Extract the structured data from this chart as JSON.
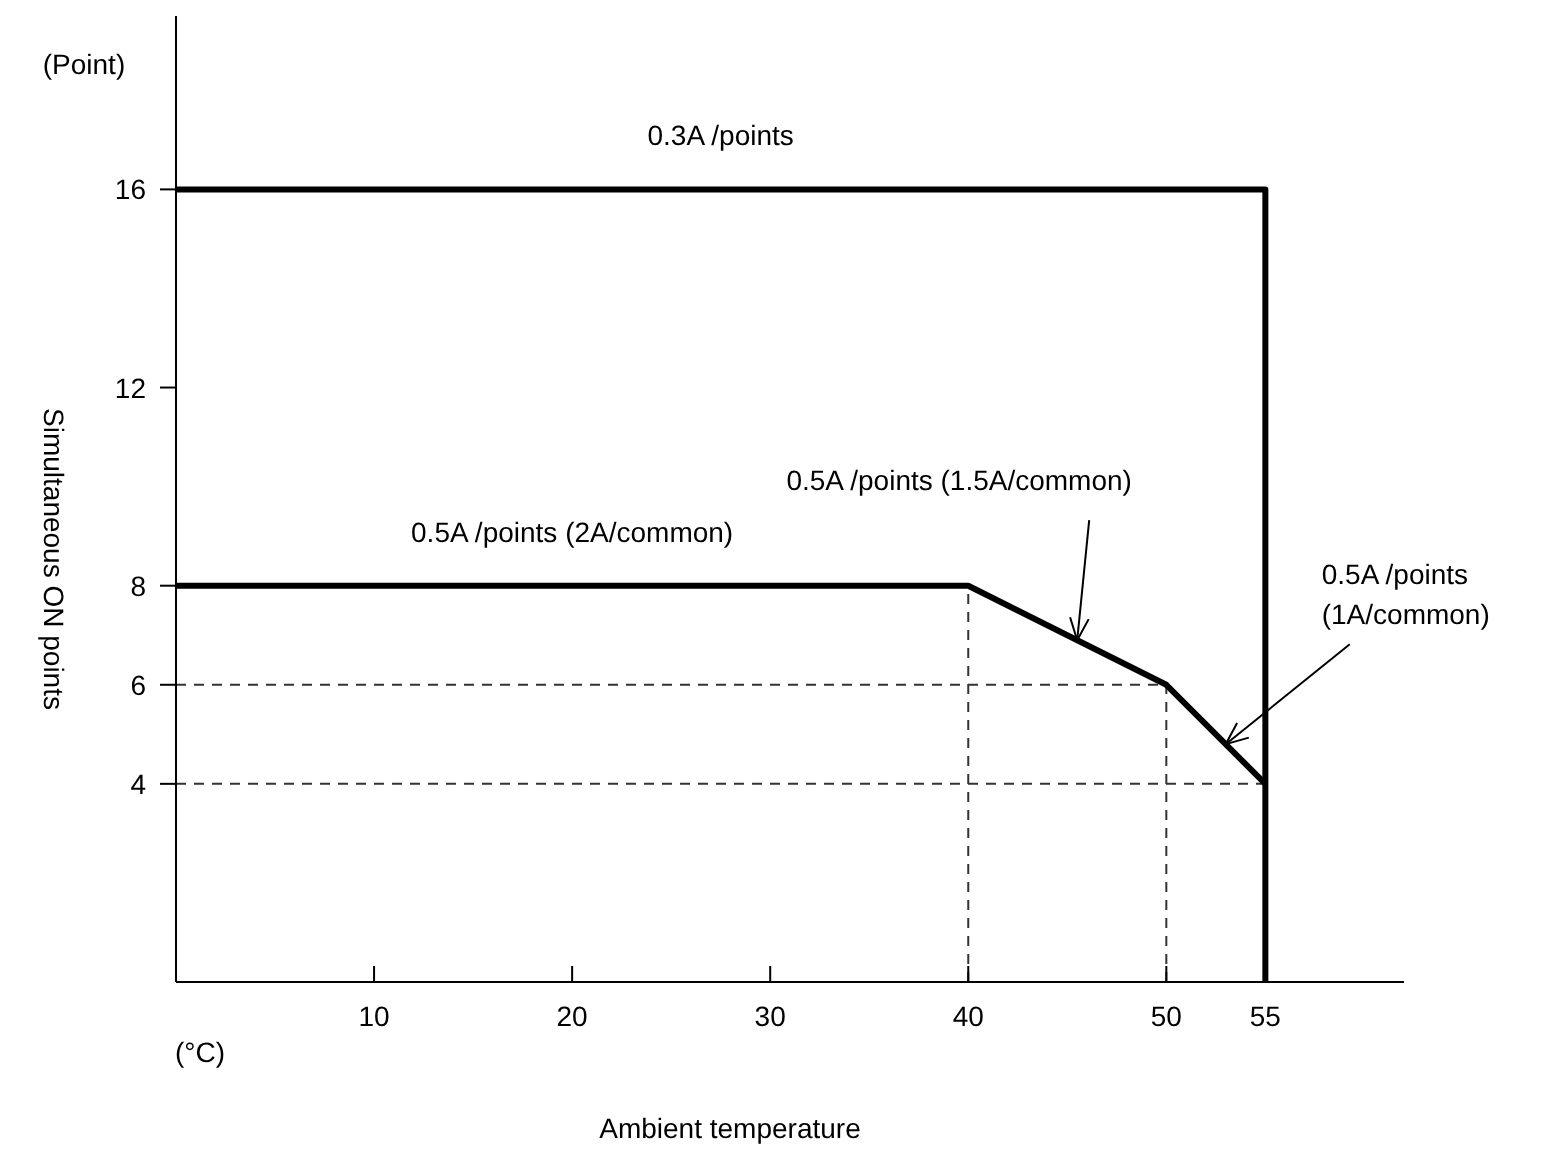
{
  "chart_data": {
    "type": "line",
    "xlabel": "Ambient temperature",
    "ylabel": "Simultaneous ON points",
    "xlim": [
      0,
      62
    ],
    "xticks": [
      10,
      20,
      30,
      40,
      50,
      55
    ],
    "ylim": [
      0,
      19.5
    ],
    "yticks": [
      4,
      6,
      8,
      12,
      16
    ],
    "series": [
      {
        "color": "#000000",
        "x": [
          0,
          55,
          55
        ],
        "values": [
          16,
          16,
          0
        ]
      },
      {
        "color": "#000000",
        "x": [
          0,
          40,
          50,
          55
        ],
        "values": [
          8,
          8,
          6,
          4
        ]
      }
    ],
    "ref_lines": [
      {
        "axis": "y",
        "value": 6,
        "color": "#333333",
        "line_style": "dashed"
      },
      {
        "axis": "y",
        "value": 4,
        "color": "#333333",
        "line_style": "dashed"
      },
      {
        "axis": "x",
        "value": 40,
        "color": "#333333",
        "line_style": "dashed"
      },
      {
        "axis": "x",
        "value": 50,
        "color": "#333333",
        "line_style": "dashed"
      }
    ],
    "annotations": [
      {
        "text": "0.3A /points",
        "x": 27.5,
        "y": 16
      },
      {
        "text": "0.5A /points (2A/common)",
        "x": 20,
        "y": 8
      },
      {
        "text": "0.5A /points (1.5A/common)",
        "x": 45.5,
        "y": 6.9
      },
      {
        "text": "0.5A /points\n(1A/common)",
        "x": 53,
        "y": 4.8
      },
      "(Point)",
      "(°C)"
    ],
    "grid": false,
    "marker": "none",
    "line_style": "solid"
  }
}
